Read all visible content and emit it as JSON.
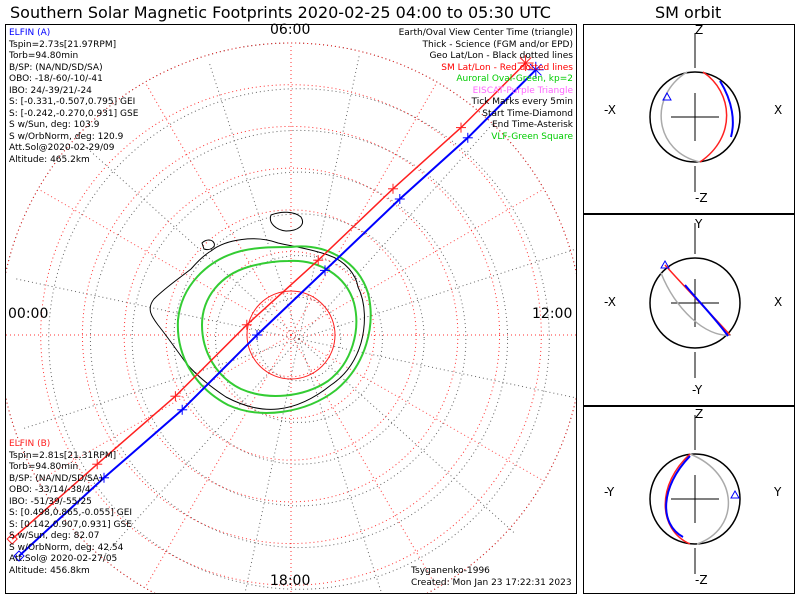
{
  "title": "Southern Solar Magnetic Footprints 2020-02-25 04:00 to 05:30 UTC",
  "orbit_title": "SM orbit",
  "hour_labels": {
    "top": "06:00",
    "left": "00:00",
    "right": "12:00",
    "bottom": "18:00"
  },
  "sat_a": {
    "name": "ELFIN (A)",
    "color": "#0000ff",
    "lines": [
      "Tspin=2.73s[21.97RPM]",
      "Torb=94.80min",
      "B/SP: (NA/ND/SD/SA)",
      "OBO: -18/-60/-10/-41",
      "IBO: 24/-39/21/-24",
      "S: [-0.331,-0.507,0.795] GEI",
      "S: [-0.242,-0.270,0.931] GSE",
      "S w/Sun, deg: 103.9",
      "S w/OrbNorm, deg: 120.9",
      "Att.Sol@2020-02-29/09",
      "Altitude: 465.2km"
    ]
  },
  "sat_b": {
    "name": "ELFIN (B)",
    "color": "#ff2020",
    "lines": [
      "Tspin=2.81s[21.31RPM]",
      "Torb=94.80min",
      "B/SP: (NA/ND/SD/SA)",
      "OBO: -33/14/-38/4",
      "IBO: -51/39/-55/25",
      "S: [0.498,0.865,-0.055] GEI",
      "S: [0.142,0.907,0.931] GSE",
      "S w/Sun, deg: 82.07",
      "S w/OrbNorm, deg: 42.54",
      "Att.Sol@ 2020-02-27/05",
      "Altitude: 456.8km"
    ]
  },
  "legend": [
    {
      "text": "Earth/Oval View Center Time (triangle)",
      "color": "#000000"
    },
    {
      "text": "Thick - Science (FGM and/or EPD)",
      "color": "#000000"
    },
    {
      "text": "Geo Lat/Lon - Black dotted lines",
      "color": "#000000"
    },
    {
      "text": "SM Lat/Lon - Red dotted lines",
      "color": "#ff0000"
    },
    {
      "text": "Auroral Oval-Green, kp=2",
      "color": "#00cc00"
    },
    {
      "text": "EISCAT-Purple Triangle",
      "color": "#ff66ff"
    },
    {
      "text": "Tick Marks every 5min",
      "color": "#000000"
    },
    {
      "text": "Start Time-Diamond",
      "color": "#000000"
    },
    {
      "text": "End Time-Asterisk",
      "color": "#000000"
    },
    {
      "text": "VLF-Green Square",
      "color": "#00cc00"
    }
  ],
  "credits": {
    "model": "Tsyganenko-1996",
    "created": "Created: Mon Jan 23 17:22:31 2023"
  },
  "orbit_panels": [
    {
      "top": "Z",
      "bottom": "-Z",
      "left": "-X",
      "right": "X"
    },
    {
      "top": "Y",
      "bottom": "-Y",
      "left": "-X",
      "right": "X"
    },
    {
      "top": "Z",
      "bottom": "-Z",
      "left": "-Y",
      "right": "Y"
    }
  ],
  "chart_data": {
    "type": "polar-map",
    "projection": "south-pole azimuthal, SM coordinates",
    "time_range": [
      "2020-02-25 04:00",
      "2020-02-25 05:30"
    ],
    "series": [
      {
        "name": "ELFIN (A)",
        "color": "#0000ff",
        "track_xy": [
          [
            -0.8,
            -0.65
          ],
          [
            -0.55,
            -0.42
          ],
          [
            -0.32,
            -0.22
          ],
          [
            -0.1,
            0.0
          ],
          [
            0.1,
            0.19
          ],
          [
            0.32,
            0.4
          ],
          [
            0.52,
            0.58
          ],
          [
            0.72,
            0.78
          ]
        ]
      },
      {
        "name": "ELFIN (B)",
        "color": "#ff2020",
        "track_xy": [
          [
            -0.82,
            -0.6
          ],
          [
            -0.57,
            -0.38
          ],
          [
            -0.34,
            -0.18
          ],
          [
            -0.13,
            0.03
          ],
          [
            0.08,
            0.22
          ],
          [
            0.3,
            0.43
          ],
          [
            0.5,
            0.61
          ],
          [
            0.69,
            0.8
          ]
        ]
      }
    ]
  }
}
